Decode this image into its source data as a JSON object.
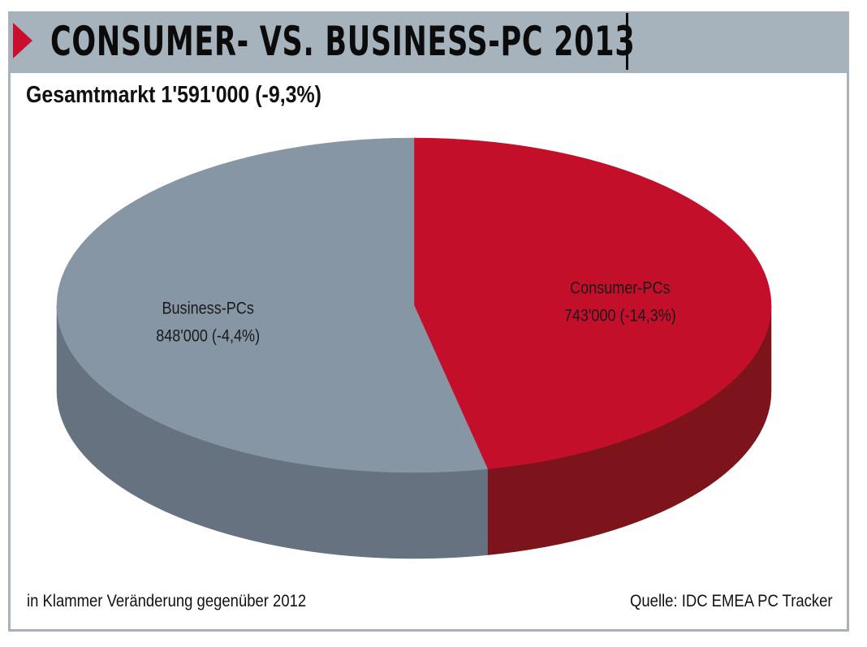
{
  "header": {
    "title": "CONSUMER- VS. BUSINESS-PC 2013"
  },
  "subtitle": "Gesamtmarkt 1'591'000 (-9,3%)",
  "chart_data": {
    "type": "pie",
    "title": "CONSUMER- VS. BUSINESS-PC 2013",
    "subtitle": "Gesamtmarkt 1'591'000 (-9,3%)",
    "total": 1591000,
    "total_change_percent": -9.3,
    "slices": [
      {
        "name": "Consumer-PCs",
        "value": 743000,
        "value_label": "743'000 (-14,3%)",
        "change_percent": -14.3,
        "color": "#c40f2b",
        "side_color": "#7d141b"
      },
      {
        "name": "Business-PCs",
        "value": 848000,
        "value_label": "848'000 (-4,4%)",
        "change_percent": -4.4,
        "color": "#8796a5",
        "side_color": "#66727f"
      }
    ]
  },
  "footer": {
    "note": "in Klammer Veränderung gegenüber 2012",
    "source": "Quelle: IDC EMEA PC Tracker"
  },
  "colors": {
    "accent": "#c8102e",
    "header_bg": "#a6b3bd",
    "frame": "#a6b3bd"
  }
}
